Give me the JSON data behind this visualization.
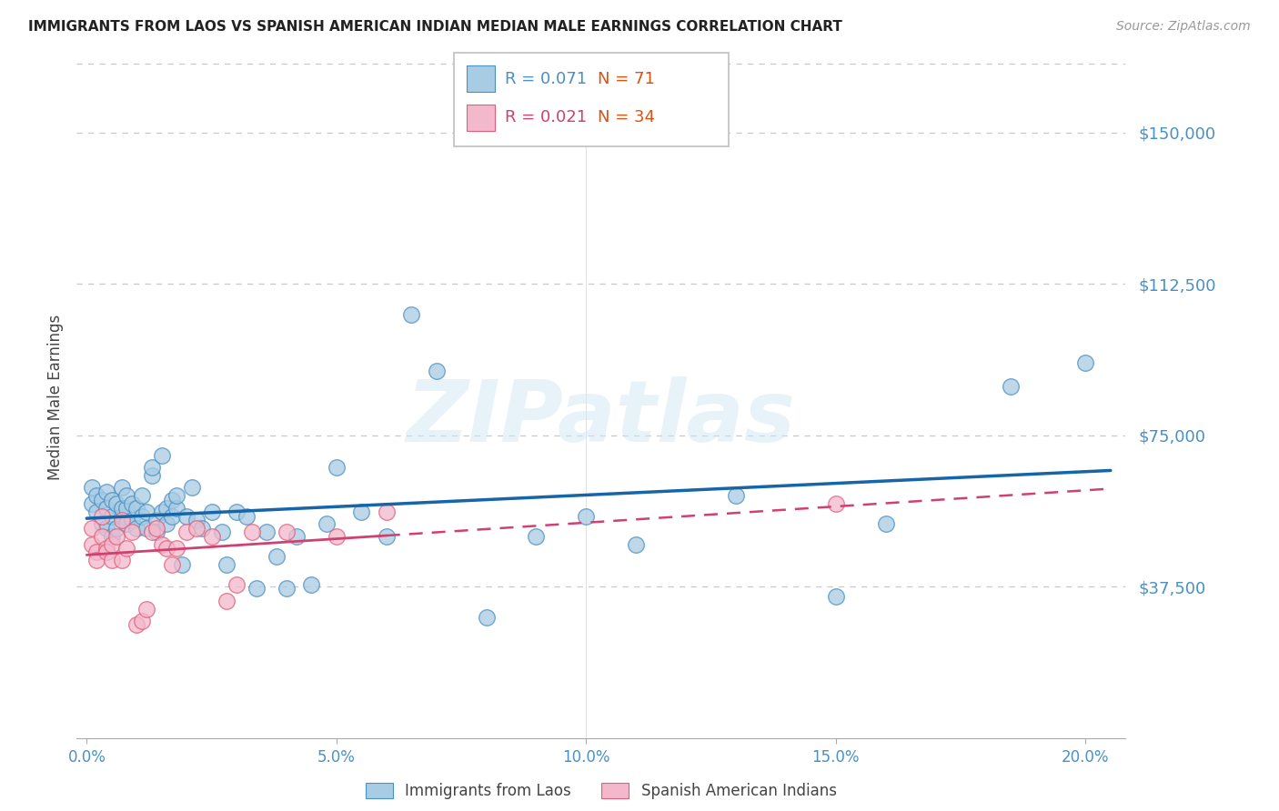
{
  "title": "IMMIGRANTS FROM LAOS VS SPANISH AMERICAN INDIAN MEDIAN MALE EARNINGS CORRELATION CHART",
  "source": "Source: ZipAtlas.com",
  "ylabel": "Median Male Earnings",
  "xlabel_ticks": [
    "0.0%",
    "5.0%",
    "10.0%",
    "15.0%",
    "20.0%"
  ],
  "xlabel_vals": [
    0.0,
    0.05,
    0.1,
    0.15,
    0.2
  ],
  "ytick_vals": [
    37500,
    75000,
    112500,
    150000
  ],
  "ylim": [
    0,
    168750
  ],
  "xlim": [
    -0.002,
    0.208
  ],
  "blue_color": "#a8cce4",
  "pink_color": "#f4b8cc",
  "blue_edge_color": "#4a90c4",
  "pink_edge_color": "#e0607a",
  "blue_line_color": "#1565a8",
  "pink_line_color": "#d04070",
  "legend_r_color": "#4a90c4",
  "legend_rp_color": "#d04070",
  "legend_n_color": "#e05010",
  "legend1_label": "Immigrants from Laos",
  "legend2_label": "Spanish American Indians",
  "title_color": "#222222",
  "axis_label_color": "#444444",
  "tick_color": "#4a90c4",
  "grid_color": "#c8c8c8",
  "watermark": "ZIPatlas",
  "blue_x": [
    0.001,
    0.001,
    0.002,
    0.002,
    0.003,
    0.003,
    0.004,
    0.004,
    0.004,
    0.005,
    0.005,
    0.005,
    0.006,
    0.006,
    0.007,
    0.007,
    0.007,
    0.008,
    0.008,
    0.008,
    0.009,
    0.009,
    0.01,
    0.01,
    0.011,
    0.011,
    0.012,
    0.012,
    0.013,
    0.013,
    0.014,
    0.014,
    0.015,
    0.015,
    0.016,
    0.016,
    0.017,
    0.017,
    0.018,
    0.018,
    0.019,
    0.02,
    0.021,
    0.022,
    0.023,
    0.025,
    0.027,
    0.028,
    0.03,
    0.032,
    0.034,
    0.036,
    0.038,
    0.04,
    0.042,
    0.045,
    0.048,
    0.05,
    0.055,
    0.06,
    0.065,
    0.07,
    0.08,
    0.09,
    0.1,
    0.11,
    0.13,
    0.15,
    0.16,
    0.185,
    0.2
  ],
  "blue_y": [
    58000,
    62000,
    56000,
    60000,
    53000,
    59000,
    52000,
    57000,
    61000,
    50000,
    55000,
    59000,
    52000,
    58000,
    55000,
    57000,
    62000,
    53000,
    57000,
    60000,
    54000,
    58000,
    52000,
    57000,
    55000,
    60000,
    56000,
    52000,
    65000,
    67000,
    54000,
    51000,
    56000,
    70000,
    53000,
    57000,
    55000,
    59000,
    57000,
    60000,
    43000,
    55000,
    62000,
    54000,
    52000,
    56000,
    51000,
    43000,
    56000,
    55000,
    37000,
    51000,
    45000,
    37000,
    50000,
    38000,
    53000,
    67000,
    56000,
    50000,
    105000,
    91000,
    30000,
    50000,
    55000,
    48000,
    60000,
    35000,
    53000,
    87000,
    93000
  ],
  "pink_x": [
    0.001,
    0.001,
    0.002,
    0.002,
    0.003,
    0.003,
    0.004,
    0.004,
    0.005,
    0.005,
    0.006,
    0.007,
    0.007,
    0.008,
    0.009,
    0.01,
    0.011,
    0.012,
    0.013,
    0.014,
    0.015,
    0.016,
    0.017,
    0.018,
    0.02,
    0.022,
    0.025,
    0.028,
    0.03,
    0.033,
    0.04,
    0.05,
    0.06,
    0.15
  ],
  "pink_y": [
    52000,
    48000,
    46000,
    44000,
    55000,
    50000,
    47000,
    46000,
    44000,
    48000,
    50000,
    54000,
    44000,
    47000,
    51000,
    28000,
    29000,
    32000,
    51000,
    52000,
    48000,
    47000,
    43000,
    47000,
    51000,
    52000,
    50000,
    34000,
    38000,
    51000,
    51000,
    50000,
    56000,
    58000
  ]
}
